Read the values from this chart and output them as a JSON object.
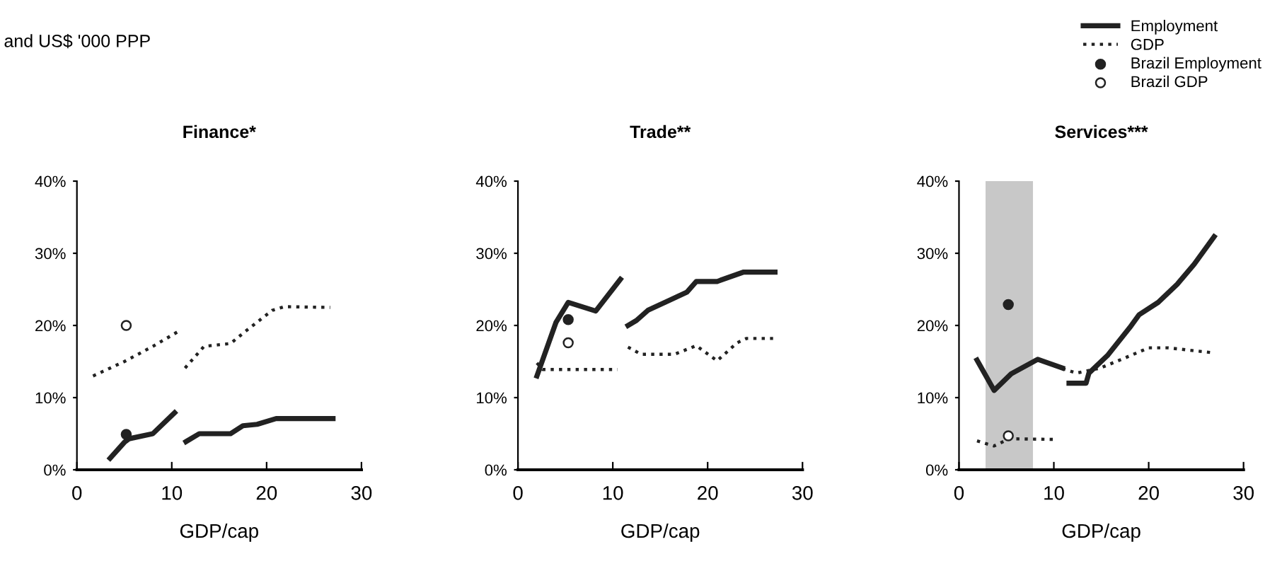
{
  "chart_data": [
    {
      "type": "line",
      "title": "Finance*",
      "subtitle": "and US$ '000 PPP",
      "xlabel": "GDP/cap",
      "xlim": [
        0,
        30
      ],
      "xticks": [
        0,
        10,
        20,
        30
      ],
      "ylim": [
        0,
        40
      ],
      "yticks": [
        {
          "value": 0,
          "label": "0%"
        },
        {
          "value": 10,
          "label": "10%"
        },
        {
          "value": 20,
          "label": "20%"
        },
        {
          "value": 30,
          "label": "30%"
        },
        {
          "value": 40,
          "label": "40%"
        }
      ],
      "legend": "top right",
      "series": [
        {
          "name": "Employment",
          "color": "#222222",
          "line_style": "solid",
          "x": [
            3.5,
            5,
            5.5,
            8,
            10.3,
            11,
            11.5,
            12.9,
            16.2,
            17.5,
            19,
            21,
            27
          ],
          "values": [
            1.6,
            3.8,
            4.3,
            5,
            7.9,
            null,
            3.9,
            5,
            5,
            6.1,
            6.3,
            7.1,
            7.1
          ]
        },
        {
          "name": "GDP",
          "color": "#222222",
          "line_style": "dotted",
          "x": [
            1.7,
            5,
            8,
            10.6,
            11,
            11.4,
            13.4,
            16.2,
            17.5,
            20.6,
            21.9,
            26.7
          ],
          "values": [
            13,
            15,
            17.1,
            19.1,
            null,
            14.1,
            17.1,
            17.5,
            18.9,
            22.1,
            22.6,
            22.5
          ]
        },
        {
          "name": "Brazil Employment",
          "type": "scatter",
          "marker": "circle",
          "color": "#222222",
          "x": [
            5.2
          ],
          "values": [
            4.9
          ]
        },
        {
          "name": "Brazil GDP",
          "type": "scatter",
          "marker": "circle",
          "color": "#ffffff",
          "x": [
            5.2
          ],
          "values": [
            20
          ]
        }
      ]
    },
    {
      "type": "line",
      "title": "Trade**",
      "xlabel": "GDP/cap",
      "xlim": [
        0,
        30
      ],
      "xticks": [
        0,
        10,
        20,
        30
      ],
      "ylim": [
        0,
        40
      ],
      "yticks": [
        {
          "value": 0,
          "label": "0%"
        },
        {
          "value": 10,
          "label": "10%"
        },
        {
          "value": 20,
          "label": "20%"
        },
        {
          "value": 30,
          "label": "30%"
        },
        {
          "value": 40,
          "label": "40%"
        }
      ],
      "series": [
        {
          "color": "#222222",
          "line_style": "solid",
          "x": [
            2,
            4,
            5.3,
            8.2,
            10.8,
            11.2,
            11.6,
            12.5,
            13.7,
            16,
            17.8,
            18.8,
            21,
            23.8,
            27.1
          ],
          "values": [
            13,
            20.4,
            23.2,
            22,
            26.4,
            null,
            20,
            20.7,
            22.1,
            23.5,
            24.6,
            26.1,
            26.1,
            27.4,
            27.4
          ]
        },
        {
          "color": "#222222",
          "line_style": "dotted",
          "x": [
            2,
            2.6,
            10.5,
            11,
            11.6,
            13,
            16.5,
            18.8,
            21,
            23.1,
            24.1,
            26.9
          ],
          "values": [
            14.8,
            13.9,
            13.9,
            null,
            17,
            16,
            16,
            17.2,
            15.1,
            17.6,
            18.2,
            18.2
          ]
        },
        {
          "type": "scatter",
          "marker": "circle",
          "color": "#222222",
          "x": [
            5.3
          ],
          "values": [
            20.8
          ]
        },
        {
          "type": "scatter",
          "marker": "circle",
          "color": "#ffffff",
          "x": [
            5.3
          ],
          "values": [
            17.6
          ]
        }
      ]
    },
    {
      "type": "line",
      "title": "Services***",
      "xlabel": "GDP/cap",
      "xlim": [
        0,
        30
      ],
      "xticks": [
        0,
        10,
        20,
        30
      ],
      "ylim": [
        0,
        40
      ],
      "yticks": [
        {
          "value": 0,
          "label": "0%"
        },
        {
          "value": 10,
          "label": "10%"
        },
        {
          "value": 20,
          "label": "20%"
        },
        {
          "value": 30,
          "label": "30%"
        },
        {
          "value": 40,
          "label": "40%"
        }
      ],
      "bands": [
        {
          "axis": "x",
          "from": 2.8,
          "to": 7.8,
          "color": "#c8c8c8"
        }
      ],
      "series": [
        {
          "color": "#222222",
          "line_style": "solid",
          "x": [
            1.9,
            3.7,
            5.5,
            8.3,
            10.9,
            11.3,
            11.6,
            13.4,
            13.7,
            15.7,
            18,
            19,
            21,
            23,
            24.8,
            26.9
          ],
          "values": [
            15.2,
            11,
            13.3,
            15.3,
            14.1,
            null,
            12,
            12,
            13.4,
            15.9,
            19.7,
            21.5,
            23.2,
            25.7,
            28.5,
            32.3
          ]
        },
        {
          "color": "#222222",
          "line_style": "dotted",
          "x": [
            1.9,
            3.7,
            5.3,
            10.4,
            10.7,
            10.9,
            12.4,
            14.9,
            17.5,
            20,
            22,
            26.9
          ],
          "values": [
            4,
            3.3,
            4.3,
            4.2,
            null,
            14,
            13.4,
            14.1,
            15.5,
            16.9,
            16.9,
            16.2
          ]
        },
        {
          "type": "scatter",
          "marker": "circle",
          "color": "#222222",
          "x": [
            5.2
          ],
          "values": [
            22.9
          ]
        },
        {
          "type": "scatter",
          "marker": "circle",
          "color": "#ffffff",
          "x": [
            5.2
          ],
          "values": [
            4.7
          ]
        }
      ]
    }
  ]
}
